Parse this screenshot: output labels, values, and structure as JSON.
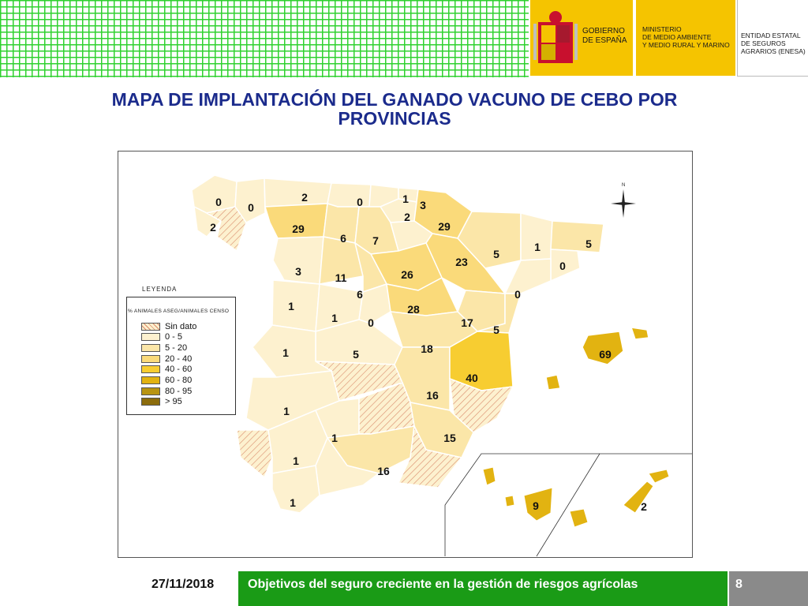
{
  "header": {
    "gobierno": "GOBIERNO\nDE ESPAÑA",
    "ministerio": "MINISTERIO\nDE MEDIO AMBIENTE\nY MEDIO RURAL Y MARINO",
    "entidad": "ENTIDAD ESTATAL\nDE SEGUROS\nAGRARIOS (ENESA)"
  },
  "title": {
    "line1": "MAPA DE IMPLANTACIÓN  DEL GANADO VACUNO DE CEBO POR",
    "line2": "PROVINCIAS"
  },
  "legend": {
    "heading": "LEYENDA",
    "subtitle": "% ANIMALES ASEG/ANIMALES CENSO",
    "items": [
      {
        "label": "Sin dato",
        "color": "hatch"
      },
      {
        "label": "0 - 5",
        "color": "#fdf1cf"
      },
      {
        "label": "5 - 20",
        "color": "#fbe6a8"
      },
      {
        "label": "20 - 40",
        "color": "#fada7a"
      },
      {
        "label": "40 - 60",
        "color": "#f7cd31"
      },
      {
        "label": "60 - 80",
        "color": "#e2b311"
      },
      {
        "label": "80 - 95",
        "color": "#b89411"
      },
      {
        "label": "> 95",
        "color": "#8c6c0c"
      }
    ]
  },
  "compass": {
    "label": "N"
  },
  "provinces": [
    {
      "value": "0"
    },
    {
      "value": "0"
    },
    {
      "value": "2"
    },
    {
      "value": "2"
    },
    {
      "value": "29"
    },
    {
      "value": "0"
    },
    {
      "value": "1"
    },
    {
      "value": "3"
    },
    {
      "value": "2"
    },
    {
      "value": "29"
    },
    {
      "value": "6"
    },
    {
      "value": "7"
    },
    {
      "value": "5"
    },
    {
      "value": "1"
    },
    {
      "value": "5"
    },
    {
      "value": "3"
    },
    {
      "value": "11"
    },
    {
      "value": "26"
    },
    {
      "value": "23"
    },
    {
      "value": "0"
    },
    {
      "value": "6"
    },
    {
      "value": "0"
    },
    {
      "value": "1"
    },
    {
      "value": "1"
    },
    {
      "value": "0"
    },
    {
      "value": "28"
    },
    {
      "value": "17"
    },
    {
      "value": "5"
    },
    {
      "value": "1"
    },
    {
      "value": "5"
    },
    {
      "value": "18"
    },
    {
      "value": "69"
    },
    {
      "value": "40"
    },
    {
      "value": "1"
    },
    {
      "value": "16"
    },
    {
      "value": "1"
    },
    {
      "value": "15"
    },
    {
      "value": "1"
    },
    {
      "value": "16"
    },
    {
      "value": "1"
    },
    {
      "value": "9"
    },
    {
      "value": "2"
    }
  ],
  "footer": {
    "date": "27/11/2018",
    "caption": "Objetivos del seguro creciente en la gestión de riesgos agrícolas",
    "page": "8"
  },
  "colors": {
    "title": "#1b2b8c",
    "footer_green": "#1a9b16",
    "footer_gray": "#8a8a8a",
    "banner_yellow": "#f5c400",
    "grid_green": "#2fd12f"
  }
}
